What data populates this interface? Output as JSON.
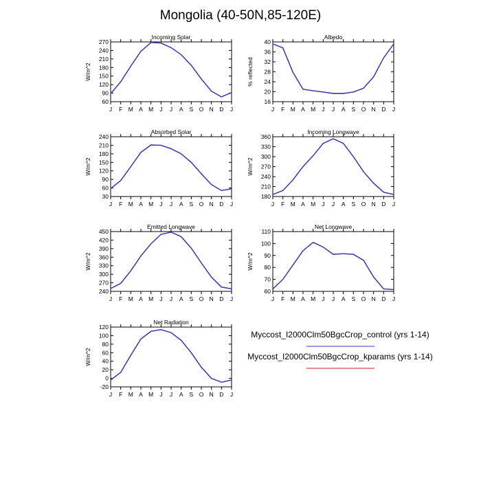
{
  "title": "Mongolia (40-50N,85-120E)",
  "months": [
    "J",
    "F",
    "M",
    "A",
    "M",
    "J",
    "J",
    "A",
    "S",
    "O",
    "N",
    "D",
    "J"
  ],
  "legend": [
    {
      "label": "Myccost_I2000Clm50BgcCrop_control (yrs 1-14)",
      "color": "#3333cc"
    },
    {
      "label": "Myccost_I2000Clm50BgcCrop_kparams (yrs 1-14)",
      "color": "#cc2222"
    }
  ],
  "chart_data": [
    {
      "type": "line",
      "title": "Incoming Solar",
      "ylabel": "W/m^2",
      "ylim": [
        60,
        270
      ],
      "yticks": [
        60,
        90,
        120,
        150,
        180,
        210,
        240,
        270
      ],
      "series": [
        {
          "name": "control",
          "color": "#3333cc",
          "values": [
            88,
            130,
            185,
            237,
            268,
            266,
            250,
            225,
            188,
            140,
            97,
            77,
            92
          ]
        },
        {
          "name": "kparams",
          "color": "#cc2222",
          "values": [
            88,
            130,
            185,
            237,
            268,
            266,
            250,
            225,
            188,
            140,
            97,
            77,
            92
          ]
        }
      ]
    },
    {
      "type": "line",
      "title": "Albedo",
      "ylabel": "% reflected",
      "ylim": [
        16,
        40
      ],
      "yticks": [
        16,
        20,
        24,
        28,
        32,
        36,
        40
      ],
      "series": [
        {
          "name": "control",
          "color": "#3333cc",
          "values": [
            39.2,
            37.6,
            27.8,
            21.0,
            20.4,
            19.9,
            19.3,
            19.3,
            19.9,
            21.4,
            26.0,
            33.6,
            39.2
          ]
        },
        {
          "name": "kparams",
          "color": "#cc2222",
          "values": [
            39.2,
            37.6,
            27.8,
            21.0,
            20.4,
            19.9,
            19.3,
            19.3,
            19.9,
            21.4,
            26.0,
            33.6,
            39.2
          ]
        }
      ]
    },
    {
      "type": "line",
      "title": "Absorbed Solar",
      "ylabel": "W/m^2",
      "ylim": [
        30,
        240
      ],
      "yticks": [
        30,
        60,
        90,
        120,
        150,
        180,
        210,
        240
      ],
      "series": [
        {
          "name": "control",
          "color": "#3333cc",
          "values": [
            58,
            86,
            135,
            185,
            211,
            210,
            198,
            180,
            150,
            110,
            72,
            51,
            57
          ]
        },
        {
          "name": "kparams",
          "color": "#cc2222",
          "values": [
            58,
            86,
            135,
            185,
            211,
            210,
            198,
            180,
            150,
            110,
            72,
            51,
            57
          ]
        }
      ]
    },
    {
      "type": "line",
      "title": "Incoming Longwave",
      "ylabel": "W/m^2",
      "ylim": [
        180,
        360
      ],
      "yticks": [
        180,
        210,
        240,
        270,
        300,
        330,
        360
      ],
      "series": [
        {
          "name": "control",
          "color": "#3333cc",
          "values": [
            186,
            198,
            230,
            270,
            303,
            340,
            354,
            340,
            300,
            255,
            220,
            193,
            186
          ]
        },
        {
          "name": "kparams",
          "color": "#cc2222",
          "values": [
            186,
            198,
            230,
            270,
            303,
            340,
            354,
            340,
            300,
            255,
            220,
            193,
            186
          ]
        }
      ]
    },
    {
      "type": "line",
      "title": "Emitted Longwave",
      "ylabel": "W/m^2",
      "ylim": [
        240,
        450
      ],
      "yticks": [
        240,
        270,
        300,
        330,
        360,
        390,
        420,
        450
      ],
      "series": [
        {
          "name": "control",
          "color": "#3333cc",
          "values": [
            250,
            268,
            312,
            364,
            407,
            440,
            448,
            432,
            392,
            340,
            290,
            255,
            249
          ]
        },
        {
          "name": "kparams",
          "color": "#cc2222",
          "values": [
            250,
            268,
            312,
            364,
            407,
            440,
            448,
            432,
            392,
            340,
            290,
            255,
            249
          ]
        }
      ]
    },
    {
      "type": "line",
      "title": "Net Longwave",
      "ylabel": "W/m^2",
      "ylim": [
        60,
        110
      ],
      "yticks": [
        60,
        70,
        80,
        90,
        100,
        110
      ],
      "series": [
        {
          "name": "control",
          "color": "#3333cc",
          "values": [
            62,
            70,
            82,
            94,
            101,
            97,
            91,
            91.5,
            91,
            86,
            72,
            62,
            61.5
          ]
        },
        {
          "name": "kparams",
          "color": "#cc2222",
          "values": [
            62,
            70,
            82,
            94,
            101,
            97,
            91,
            91.5,
            91,
            86,
            72,
            62,
            61.5
          ]
        }
      ]
    },
    {
      "type": "line",
      "title": "Net Radiation",
      "ylabel": "W/m^2",
      "ylim": [
        -20,
        120
      ],
      "yticks": [
        -20,
        0,
        20,
        40,
        60,
        80,
        100,
        120
      ],
      "series": [
        {
          "name": "control",
          "color": "#3333cc",
          "values": [
            -4,
            14,
            54,
            92,
            110,
            114,
            107,
            89,
            60,
            26,
            0,
            -9,
            -4
          ]
        },
        {
          "name": "kparams",
          "color": "#cc2222",
          "values": [
            -4,
            14,
            54,
            92,
            110,
            114,
            107,
            89,
            60,
            26,
            0,
            -9,
            -4
          ]
        }
      ]
    }
  ]
}
